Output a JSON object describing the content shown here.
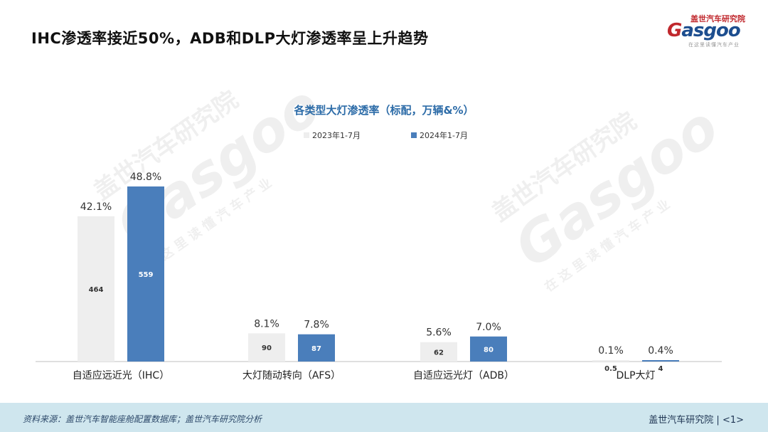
{
  "slide": {
    "title": "IHC渗透率接近50%，ADB和DLP大灯渗透率呈上升趋势",
    "footer_source": "资料来源：盖世汽车智能座舱配置数据库；盖世汽车研究院分析",
    "footer_org": "盖世汽车研究院",
    "footer_page": "<1>"
  },
  "logo": {
    "cn": "盖世汽车研究院",
    "en_g": "G",
    "en_rest": "asgoo",
    "tagline": "在这里读懂汽车产业"
  },
  "watermark": {
    "cn": "盖世汽车研究院",
    "en": "Gasgoo",
    "slogan": "在这里读懂汽车产业"
  },
  "colors": {
    "series_2023": "#eeeeee",
    "series_2024": "#4a7ebb",
    "title_blue": "#2d6ca8",
    "footer_bg": "#cfe6ee"
  },
  "chart_data": {
    "type": "bar",
    "title": "各类型大灯渗透率（标配，万辆&%）",
    "categories": [
      "自适应远近光（IHC）",
      "大灯随动转向（AFS）",
      "自适应远光灯（ADB）",
      "DLP大灯"
    ],
    "series": [
      {
        "name": "2023年1-7月",
        "values": [
          464,
          90,
          62,
          0.5
        ],
        "value_labels": [
          "464",
          "90",
          "62",
          "0.5"
        ],
        "rate_labels": [
          "42.1%",
          "8.1%",
          "5.6%",
          "0.1%"
        ]
      },
      {
        "name": "2024年1-7月",
        "values": [
          559,
          87,
          80,
          4
        ],
        "value_labels": [
          "559",
          "87",
          "80",
          "4"
        ],
        "rate_labels": [
          "48.8%",
          "7.8%",
          "7.0%",
          "0.4%"
        ]
      }
    ],
    "legend_position": "top-center",
    "grid": false
  }
}
